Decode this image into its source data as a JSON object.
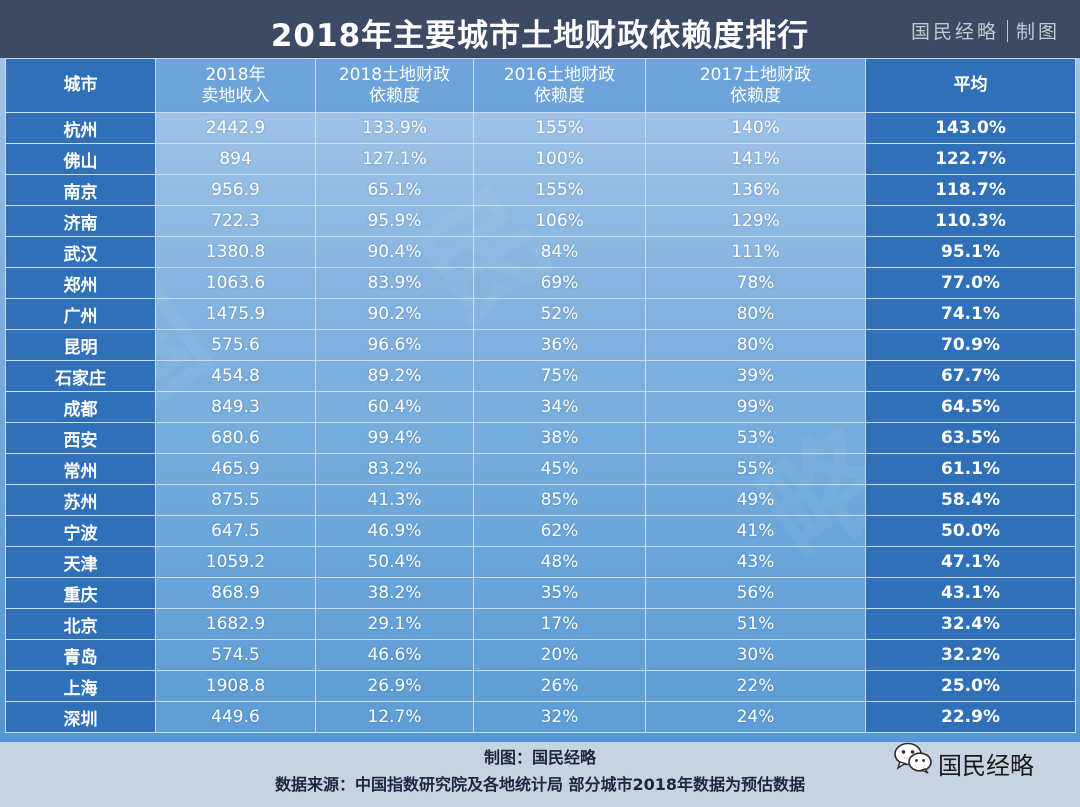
{
  "header": {
    "title": "2018年主要城市土地财政依赖度排行",
    "brand": "国民经略",
    "brand_suffix": "制图"
  },
  "chart_data": {
    "type": "table",
    "title": "2018年主要城市土地财政依赖度排行",
    "columns": [
      [
        "城市"
      ],
      [
        "2018年",
        "卖地收入"
      ],
      [
        "2018土地财政",
        "依赖度"
      ],
      [
        "2016土地财政",
        "依赖度"
      ],
      [
        "2017土地财政",
        "依赖度"
      ],
      [
        "平均"
      ]
    ],
    "rows": [
      [
        "杭州",
        "2442.9",
        "133.9%",
        "155%",
        "140%",
        "143.0%"
      ],
      [
        "佛山",
        "894",
        "127.1%",
        "100%",
        "141%",
        "122.7%"
      ],
      [
        "南京",
        "956.9",
        "65.1%",
        "155%",
        "136%",
        "118.7%"
      ],
      [
        "济南",
        "722.3",
        "95.9%",
        "106%",
        "129%",
        "110.3%"
      ],
      [
        "武汉",
        "1380.8",
        "90.4%",
        "84%",
        "111%",
        "95.1%"
      ],
      [
        "郑州",
        "1063.6",
        "83.9%",
        "69%",
        "78%",
        "77.0%"
      ],
      [
        "广州",
        "1475.9",
        "90.2%",
        "52%",
        "80%",
        "74.1%"
      ],
      [
        "昆明",
        "575.6",
        "96.6%",
        "36%",
        "80%",
        "70.9%"
      ],
      [
        "石家庄",
        "454.8",
        "89.2%",
        "75%",
        "39%",
        "67.7%"
      ],
      [
        "成都",
        "849.3",
        "60.4%",
        "34%",
        "99%",
        "64.5%"
      ],
      [
        "西安",
        "680.6",
        "99.4%",
        "38%",
        "53%",
        "63.5%"
      ],
      [
        "常州",
        "465.9",
        "83.2%",
        "45%",
        "55%",
        "61.1%"
      ],
      [
        "苏州",
        "875.5",
        "41.3%",
        "85%",
        "49%",
        "58.4%"
      ],
      [
        "宁波",
        "647.5",
        "46.9%",
        "62%",
        "41%",
        "50.0%"
      ],
      [
        "天津",
        "1059.2",
        "50.4%",
        "48%",
        "43%",
        "47.1%"
      ],
      [
        "重庆",
        "868.9",
        "38.2%",
        "35%",
        "56%",
        "43.1%"
      ],
      [
        "北京",
        "1682.9",
        "29.1%",
        "17%",
        "51%",
        "32.4%"
      ],
      [
        "青岛",
        "574.5",
        "46.6%",
        "20%",
        "30%",
        "32.2%"
      ],
      [
        "上海",
        "1908.8",
        "26.9%",
        "26%",
        "22%",
        "25.0%"
      ],
      [
        "深圳",
        "449.6",
        "12.7%",
        "32%",
        "24%",
        "22.9%"
      ]
    ]
  },
  "footer": {
    "line1": "制图：国民经略",
    "line2": "数据来源：中国指数研究院及各地统计局  部分城市2018年数据为预估数据",
    "brand": "国民经略"
  },
  "colors": {
    "title_bar": "#3c4a63",
    "accent_cell": "#2f70b9",
    "footer": "#c6d3e1"
  },
  "icons": {
    "wechat": "wechat-icon"
  }
}
